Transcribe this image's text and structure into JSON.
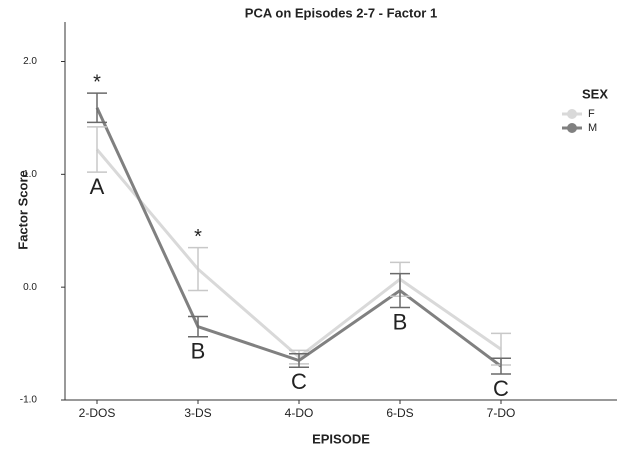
{
  "chart_data": {
    "type": "line",
    "title": "PCA on Episodes 2-7 - Factor 1",
    "x_label": "EPISODE",
    "y_label": "Factor Score",
    "categories": [
      "2-DOS",
      "3-DS",
      "4-DO",
      "6-DS",
      "7-DO"
    ],
    "series": [
      {
        "name": "F",
        "color": "#d9d9d9",
        "values": [
          1.22,
          0.16,
          -0.62,
          0.07,
          -0.55
        ],
        "errors": [
          0.2,
          0.19,
          0.06,
          0.15,
          0.14
        ]
      },
      {
        "name": "M",
        "color": "#808080",
        "values": [
          1.59,
          -0.35,
          -0.65,
          -0.03,
          -0.7
        ],
        "errors": [
          0.13,
          0.09,
          0.06,
          0.15,
          0.07
        ]
      }
    ],
    "significance": [
      "*",
      "*",
      null,
      null,
      null
    ],
    "group_letters": [
      "A",
      "B",
      "C",
      "B",
      "C"
    ],
    "legend_title": "SEX",
    "legend": "right",
    "ylim": [
      -1.0,
      2.35
    ],
    "yticks": [
      {
        "value": -1.0,
        "label": "-1.0"
      },
      {
        "value": 0.0,
        "label": "0.0"
      },
      {
        "value": 1.0,
        "label": "1.0"
      },
      {
        "value": 2.0,
        "label": "2.0"
      }
    ]
  }
}
